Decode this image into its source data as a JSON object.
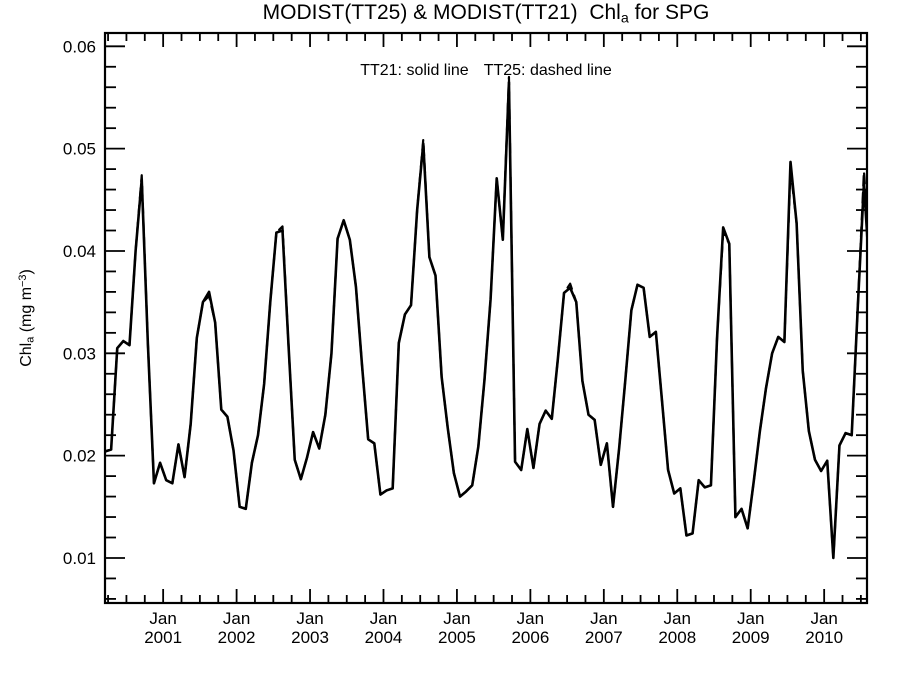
{
  "title": {
    "prefix": "MODIST(TT25) & MODIST(TT21)  Chl",
    "subscript": "a",
    "suffix": " for SPG"
  },
  "legend_note": {
    "tt21": "TT21: solid line",
    "tt25": "TT25: dashed line"
  },
  "y_axis_label": {
    "prefix": "Chl",
    "sub": "a",
    "mid": " (mg m",
    "sup": "−3",
    "close": ")"
  },
  "colors": {
    "line": "#000000",
    "background": "#ffffff",
    "text": "#000000"
  },
  "chart_data": {
    "type": "line",
    "title": "MODIST(TT25) & MODIST(TT21) Chl_a for SPG",
    "ylabel": "Chl_a (mg m-3)",
    "grid": false,
    "xlim": [
      2000.2083,
      2010.5833
    ],
    "ylim": [
      0.0056,
      0.0613
    ],
    "x_start_year": 2000,
    "x_start_month": 3,
    "sampling": "monthly, points at mid-month, Mar 2000 - Aug 2010",
    "x_major_years": [
      2001,
      2002,
      2003,
      2004,
      2005,
      2006,
      2007,
      2008,
      2009,
      2010
    ],
    "x_month_label": "Jan",
    "x_minor_step_years": 0.25,
    "yticks": [
      0.01,
      0.02,
      0.03,
      0.04,
      0.05,
      0.06
    ],
    "ytick_labels": [
      "0.01",
      "0.02",
      "0.03",
      "0.04",
      "0.05",
      "0.06"
    ],
    "y_minor_step": 0.002,
    "series": [
      {
        "name": "TT21",
        "style": "solid",
        "values": [
          0.0204,
          0.0206,
          0.0305,
          0.0312,
          0.0308,
          0.04,
          0.047,
          0.031,
          0.0173,
          0.0193,
          0.0176,
          0.0173,
          0.0211,
          0.0179,
          0.0231,
          0.0315,
          0.035,
          0.036,
          0.033,
          0.0245,
          0.0238,
          0.0205,
          0.015,
          0.0148,
          0.0193,
          0.022,
          0.027,
          0.035,
          0.0418,
          0.042,
          0.0306,
          0.0196,
          0.0177,
          0.0198,
          0.0223,
          0.0207,
          0.024,
          0.03,
          0.0412,
          0.043,
          0.0411,
          0.0365,
          0.0288,
          0.0216,
          0.0212,
          0.0162,
          0.0166,
          0.0168,
          0.031,
          0.0338,
          0.0347,
          0.044,
          0.0505,
          0.0394,
          0.0376,
          0.0277,
          0.0227,
          0.0183,
          0.016,
          0.0165,
          0.0171,
          0.0209,
          0.0274,
          0.0353,
          0.0471,
          0.0411,
          0.0565,
          0.0194,
          0.0186,
          0.0226,
          0.0188,
          0.0231,
          0.0244,
          0.0236,
          0.0295,
          0.0359,
          0.0364,
          0.035,
          0.0273,
          0.024,
          0.0235,
          0.0191,
          0.0212,
          0.015,
          0.0207,
          0.0273,
          0.0342,
          0.0367,
          0.0364,
          0.0316,
          0.0321,
          0.0254,
          0.0186,
          0.0163,
          0.0168,
          0.0122,
          0.0124,
          0.0176,
          0.0169,
          0.0171,
          0.0315,
          0.0423,
          0.0407,
          0.014,
          0.0148,
          0.0129,
          0.0175,
          0.0224,
          0.0266,
          0.03,
          0.0316,
          0.0311,
          0.0487,
          0.0427,
          0.0283,
          0.0224,
          0.0196,
          0.0185,
          0.0195,
          0.01,
          0.021,
          0.0222,
          0.022,
          0.0346,
          0.0466,
          0.037
        ]
      },
      {
        "name": "TT25",
        "style": "dashed",
        "values": [
          0.0204,
          0.0206,
          0.0305,
          0.0312,
          0.0308,
          0.04,
          0.0474,
          0.031,
          0.0173,
          0.0193,
          0.0176,
          0.0173,
          0.0211,
          0.0179,
          0.0231,
          0.0315,
          0.035,
          0.0356,
          0.033,
          0.0245,
          0.0238,
          0.0205,
          0.015,
          0.0148,
          0.0193,
          0.022,
          0.027,
          0.035,
          0.0418,
          0.0424,
          0.0306,
          0.0196,
          0.0177,
          0.0198,
          0.0223,
          0.0207,
          0.024,
          0.03,
          0.0412,
          0.043,
          0.0411,
          0.0365,
          0.0288,
          0.0216,
          0.0212,
          0.0162,
          0.0166,
          0.0168,
          0.031,
          0.0338,
          0.0347,
          0.044,
          0.0509,
          0.0394,
          0.0376,
          0.0277,
          0.0227,
          0.0183,
          0.016,
          0.0165,
          0.0171,
          0.0209,
          0.0274,
          0.0353,
          0.0471,
          0.0411,
          0.057,
          0.0194,
          0.0186,
          0.0226,
          0.0188,
          0.0231,
          0.0244,
          0.0236,
          0.0295,
          0.0359,
          0.0368,
          0.035,
          0.0273,
          0.024,
          0.0235,
          0.0191,
          0.0212,
          0.015,
          0.0207,
          0.0273,
          0.0342,
          0.0367,
          0.0364,
          0.0316,
          0.0321,
          0.0254,
          0.0186,
          0.0163,
          0.0168,
          0.0122,
          0.0124,
          0.0176,
          0.0169,
          0.0171,
          0.0315,
          0.0418,
          0.0407,
          0.014,
          0.0148,
          0.0129,
          0.0175,
          0.0224,
          0.0266,
          0.03,
          0.0316,
          0.0311,
          0.048,
          0.0427,
          0.0283,
          0.0224,
          0.0196,
          0.0185,
          0.0195,
          0.01,
          0.021,
          0.0222,
          0.022,
          0.0346,
          0.0478,
          0.039
        ]
      }
    ]
  }
}
